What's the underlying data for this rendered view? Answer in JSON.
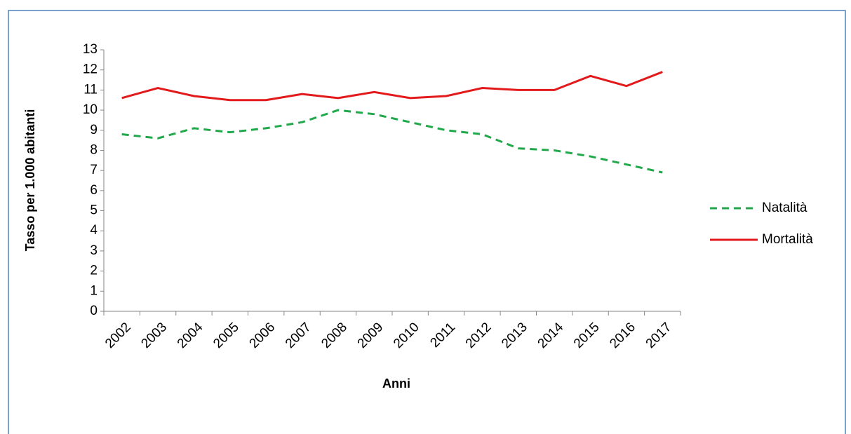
{
  "chart_data": {
    "type": "line",
    "x_label": "Anni",
    "y_label": "Tasso per 1.000 abitanti",
    "categories": [
      "2002",
      "2003",
      "2004",
      "2005",
      "2006",
      "2007",
      "2008",
      "2009",
      "2010",
      "2011",
      "2012",
      "2013",
      "2014",
      "2015",
      "2016",
      "2017"
    ],
    "series": [
      {
        "name": "Natalità",
        "color": "#21a84a",
        "dash": true,
        "values": [
          8.8,
          8.6,
          9.1,
          8.9,
          9.1,
          9.4,
          10.0,
          9.8,
          9.4,
          9.0,
          8.8,
          8.1,
          8.0,
          7.7,
          7.3,
          6.9
        ]
      },
      {
        "name": "Mortalità",
        "color": "#e31a1c",
        "dash": false,
        "values": [
          10.6,
          11.1,
          10.7,
          10.5,
          10.5,
          10.8,
          10.6,
          10.9,
          10.6,
          10.7,
          11.1,
          11.0,
          11.0,
          11.7,
          11.2,
          11.9
        ]
      }
    ],
    "ylim": [
      0,
      13
    ],
    "yticks": [
      0,
      1,
      2,
      3,
      4,
      5,
      6,
      7,
      8,
      9,
      10,
      11,
      12,
      13
    ],
    "grid": false
  }
}
